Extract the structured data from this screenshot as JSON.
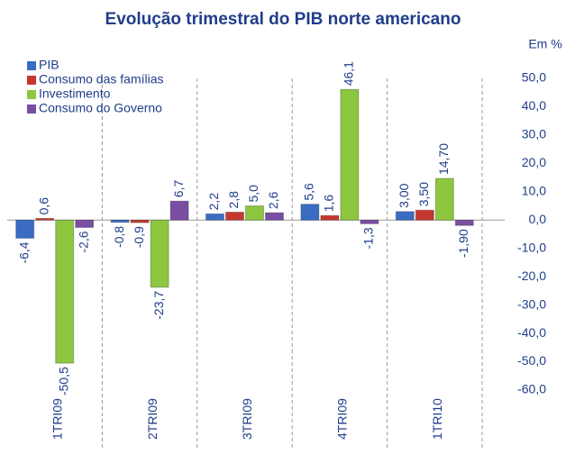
{
  "chart_data": {
    "type": "bar",
    "title": "Evolução trimestral do PIB norte americano",
    "unit_label": "Em %",
    "categories": [
      "1TRI09",
      "2TRI09",
      "3TRI09",
      "4TRI09",
      "1TRI10"
    ],
    "series": [
      {
        "name": "PIB",
        "color": "#3b6cc4",
        "values": [
          -6.4,
          -0.8,
          2.2,
          5.6,
          3.0
        ],
        "value_labels": [
          "-6,4",
          "-0,8",
          "2,2",
          "5,6",
          "3,00"
        ]
      },
      {
        "name": "Consumo das famílias",
        "color": "#c6382f",
        "values": [
          0.6,
          -0.9,
          2.8,
          1.6,
          3.5
        ],
        "value_labels": [
          "0,6",
          "-0,9",
          "2,8",
          "1,6",
          "3,50"
        ]
      },
      {
        "name": "Investimento",
        "color": "#8dc63f",
        "values": [
          -50.5,
          -23.7,
          5.0,
          46.1,
          14.7
        ],
        "value_labels": [
          "-50,5",
          "-23,7",
          "5,0",
          "46,1",
          "14,70"
        ]
      },
      {
        "name": "Consumo do Governo",
        "color": "#7a4ea3",
        "values": [
          -2.6,
          6.7,
          2.6,
          -1.3,
          -1.9
        ],
        "value_labels": [
          "-2,6",
          "6,7",
          "2,6",
          "-1,3",
          "-1,90"
        ]
      }
    ],
    "ylim": [
      -60,
      50
    ],
    "yticks": [
      {
        "value": 50,
        "label": "50,0"
      },
      {
        "value": 40,
        "label": "40,0"
      },
      {
        "value": 30,
        "label": "30,0"
      },
      {
        "value": 20,
        "label": "20,0"
      },
      {
        "value": 10,
        "label": "10,0"
      },
      {
        "value": 0,
        "label": "0,0"
      },
      {
        "value": -10,
        "label": "-10,0"
      },
      {
        "value": -20,
        "label": "-20,0"
      },
      {
        "value": -30,
        "label": "-30,0"
      },
      {
        "value": -40,
        "label": "-40,0"
      },
      {
        "value": -50,
        "label": "-50,0"
      },
      {
        "value": -60,
        "label": "-60,0"
      }
    ],
    "grid": false
  }
}
